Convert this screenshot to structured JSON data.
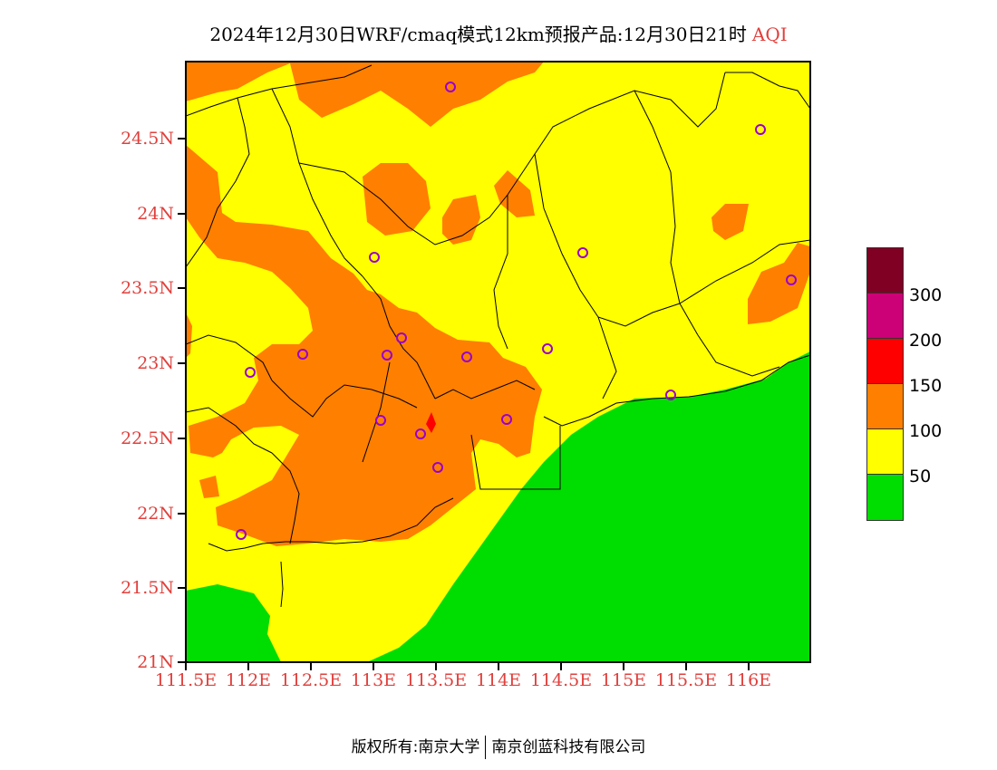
{
  "title": {
    "main": "2024年12月30日WRF/cmaq模式12km预报产品:12月30日21时",
    "variable": "AQI"
  },
  "axes": {
    "lat_labels": [
      "24.5N",
      "24N",
      "23.5N",
      "23N",
      "22.5N",
      "22N",
      "21.5N",
      "21N"
    ],
    "lon_labels": [
      "111.5E",
      "112E",
      "112.5E",
      "113E",
      "113.5E",
      "114E",
      "114.5E",
      "115E",
      "115.5E",
      "116E"
    ]
  },
  "legend": {
    "colors": {
      "good": "#00dd00",
      "moderate": "#ffff00",
      "usg": "#ff7f00",
      "unhealthy": "#ff0000",
      "very_unhealthy": "#cc0077",
      "hazardous": "#7f0023"
    },
    "labels": [
      "50",
      "100",
      "150",
      "200",
      "300"
    ]
  },
  "footer": {
    "left": "版权所有:南京大学",
    "right": "南京创蓝科技有限公司"
  }
}
